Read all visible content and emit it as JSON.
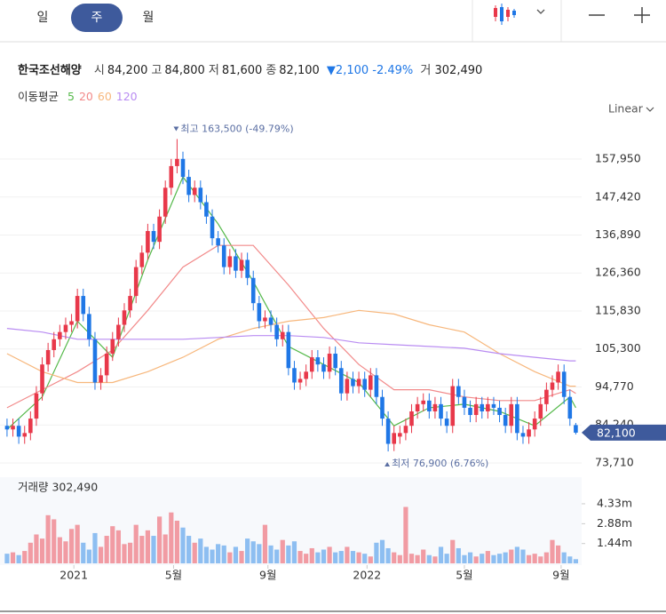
{
  "tabs": [
    "일",
    "주",
    "월"
  ],
  "header": {
    "name": "한국조선해양",
    "fields": [
      {
        "label": "시",
        "value": "84,200"
      },
      {
        "label": "고",
        "value": "84,800"
      },
      {
        "label": "저",
        "value": "81,600"
      },
      {
        "label": "종",
        "value": "82,100"
      }
    ],
    "change": "2,100 -2.49%",
    "volume_label": "거",
    "volume": "302,490"
  },
  "scale_mode": "Linear",
  "chart_data": {
    "type": "candlestick",
    "legend_title": "이동평균",
    "up_color": "#e8384a",
    "down_color": "#1f77e6",
    "volume_up_color": "#f19ba3",
    "volume_down_color": "#8dbef1",
    "xlim": [
      -1.2,
      98
    ],
    "xticks": [
      {
        "value": 11.4,
        "label": "2021"
      },
      {
        "value": 28.4,
        "label": "5월"
      },
      {
        "value": 44.5,
        "label": "9월"
      },
      {
        "value": 61.4,
        "label": "2022"
      },
      {
        "value": 78,
        "label": "5월"
      },
      {
        "value": 94.5,
        "label": "9월"
      }
    ],
    "ylim": [
      71490,
      168790
    ],
    "yticks": [
      {
        "value": 157950,
        "label": "157,950"
      },
      {
        "value": 147420,
        "label": "147,420"
      },
      {
        "value": 136890,
        "label": "136,890"
      },
      {
        "value": 126360,
        "label": "126,360"
      },
      {
        "value": 115830,
        "label": "115,830"
      },
      {
        "value": 105300,
        "label": "105,300"
      },
      {
        "value": 94770,
        "label": "94,770"
      },
      {
        "value": 84240,
        "label": "84,240"
      },
      {
        "value": 73710,
        "label": "73,710"
      }
    ],
    "grid": true,
    "high_label": "최고 163,500 (-49.79%)",
    "low_label": "최저 76,900 (6.76%)",
    "last_label": "82,100",
    "ohlc": [
      [
        84000,
        86000,
        81000,
        83000
      ],
      [
        83000,
        86000,
        81000,
        84000
      ],
      [
        84000,
        86000,
        79000,
        81000
      ],
      [
        81000,
        84000,
        79000,
        82000
      ],
      [
        82000,
        88000,
        80000,
        86000
      ],
      [
        86000,
        95000,
        84000,
        93000
      ],
      [
        93000,
        103000,
        91000,
        101000
      ],
      [
        101000,
        107000,
        99000,
        105000
      ],
      [
        105000,
        110000,
        103000,
        108000
      ],
      [
        108000,
        112000,
        106000,
        110000
      ],
      [
        110000,
        114000,
        108000,
        112000
      ],
      [
        112000,
        115000,
        110000,
        113000
      ],
      [
        113000,
        122000,
        111000,
        120000
      ],
      [
        120000,
        122000,
        113000,
        115000
      ],
      [
        115000,
        117000,
        106000,
        108000
      ],
      [
        108000,
        110000,
        94000,
        96000
      ],
      [
        96000,
        100000,
        94000,
        98000
      ],
      [
        98000,
        106000,
        96000,
        104000
      ],
      [
        104000,
        110000,
        102000,
        108000
      ],
      [
        108000,
        114000,
        106000,
        112000
      ],
      [
        112000,
        118000,
        110000,
        116000
      ],
      [
        116000,
        122000,
        114000,
        120000
      ],
      [
        120000,
        130000,
        118000,
        128000
      ],
      [
        128000,
        134000,
        126000,
        132000
      ],
      [
        132000,
        140000,
        130000,
        138000
      ],
      [
        138000,
        140000,
        133000,
        135000
      ],
      [
        135000,
        144000,
        133000,
        142000
      ],
      [
        142000,
        152000,
        140000,
        150000
      ],
      [
        150000,
        158000,
        148000,
        156000
      ],
      [
        156000,
        163500,
        154000,
        158000
      ],
      [
        158000,
        160000,
        151000,
        153000
      ],
      [
        153000,
        155000,
        146000,
        148000
      ],
      [
        148000,
        152000,
        146000,
        150000
      ],
      [
        150000,
        152000,
        144000,
        146000
      ],
      [
        146000,
        148000,
        140000,
        142000
      ],
      [
        142000,
        144000,
        134000,
        136000
      ],
      [
        136000,
        138000,
        132000,
        134000
      ],
      [
        134000,
        136000,
        126000,
        128000
      ],
      [
        128000,
        133000,
        126000,
        131000
      ],
      [
        131000,
        133000,
        125000,
        127000
      ],
      [
        127000,
        132000,
        125000,
        130000
      ],
      [
        130000,
        132000,
        123000,
        125000
      ],
      [
        125000,
        127000,
        116000,
        118000
      ],
      [
        118000,
        120000,
        111000,
        113000
      ],
      [
        113000,
        116000,
        111000,
        114000
      ],
      [
        114000,
        116000,
        110000,
        112000
      ],
      [
        112000,
        114000,
        106000,
        108000
      ],
      [
        108000,
        112000,
        106000,
        110000
      ],
      [
        110000,
        112000,
        98000,
        100000
      ],
      [
        100000,
        102000,
        94000,
        96000
      ],
      [
        96000,
        99000,
        94000,
        97000
      ],
      [
        97000,
        101000,
        95000,
        99000
      ],
      [
        99000,
        105000,
        97000,
        103000
      ],
      [
        103000,
        105000,
        99000,
        101000
      ],
      [
        101000,
        103000,
        97000,
        99000
      ],
      [
        99000,
        106000,
        97000,
        104000
      ],
      [
        104000,
        106000,
        98000,
        100000
      ],
      [
        100000,
        102000,
        91000,
        93000
      ],
      [
        93000,
        99000,
        91000,
        97000
      ],
      [
        97000,
        99000,
        93000,
        95000
      ],
      [
        95000,
        99000,
        93000,
        97000
      ],
      [
        97000,
        99000,
        92000,
        94000
      ],
      [
        94000,
        100000,
        92000,
        98000
      ],
      [
        98000,
        100000,
        90000,
        92000
      ],
      [
        92000,
        94000,
        84000,
        86000
      ],
      [
        86000,
        88000,
        76900,
        79000
      ],
      [
        79000,
        84000,
        77000,
        82000
      ],
      [
        81000,
        84000,
        79000,
        82000
      ],
      [
        82000,
        86000,
        80000,
        84000
      ],
      [
        84000,
        90000,
        82000,
        88000
      ],
      [
        88000,
        92000,
        86000,
        90000
      ],
      [
        90000,
        93000,
        88000,
        91000
      ],
      [
        91000,
        93000,
        86000,
        88000
      ],
      [
        88000,
        92000,
        86000,
        90000
      ],
      [
        90000,
        92000,
        84000,
        86000
      ],
      [
        86000,
        88000,
        82000,
        84000
      ],
      [
        84000,
        97000,
        82000,
        95000
      ],
      [
        95000,
        97000,
        90000,
        92000
      ],
      [
        92000,
        94000,
        87000,
        89000
      ],
      [
        89000,
        91000,
        85000,
        87000
      ],
      [
        87000,
        92000,
        85000,
        90000
      ],
      [
        90000,
        92000,
        86000,
        88000
      ],
      [
        88000,
        92000,
        86000,
        90000
      ],
      [
        90000,
        92000,
        87000,
        89000
      ],
      [
        89000,
        91000,
        85000,
        87000
      ],
      [
        87000,
        89000,
        82000,
        84000
      ],
      [
        84000,
        92000,
        82000,
        90000
      ],
      [
        90000,
        92000,
        80000,
        82000
      ],
      [
        82000,
        84000,
        79000,
        81000
      ],
      [
        81000,
        85000,
        79000,
        83000
      ],
      [
        83000,
        88000,
        81000,
        86000
      ],
      [
        86000,
        92000,
        84000,
        90000
      ],
      [
        90000,
        96000,
        88000,
        94000
      ],
      [
        94000,
        98000,
        92000,
        96000
      ],
      [
        96000,
        101000,
        94000,
        99000
      ],
      [
        99000,
        101000,
        90000,
        92000
      ],
      [
        92000,
        94000,
        84000,
        86000
      ],
      [
        84200,
        84800,
        81600,
        82100
      ]
    ],
    "series": [
      {
        "name": "5",
        "color": "#55b94a",
        "x": [
          0,
          6,
          12,
          18,
          24,
          30,
          36,
          42,
          48,
          54,
          60,
          66,
          72,
          78,
          84,
          90,
          96,
          97
        ],
        "values": [
          83000,
          92000,
          113000,
          103000,
          130000,
          153000,
          140000,
          124000,
          106000,
          101000,
          96000,
          84000,
          89000,
          90000,
          88000,
          84000,
          92000,
          89000
        ]
      },
      {
        "name": "20",
        "color": "#f28a8a",
        "x": [
          0,
          6,
          12,
          18,
          24,
          30,
          36,
          42,
          48,
          54,
          60,
          66,
          72,
          78,
          84,
          90,
          96,
          97
        ],
        "values": [
          89000,
          94000,
          99000,
          105000,
          116000,
          128000,
          134000,
          134000,
          123000,
          111000,
          101000,
          94000,
          94000,
          92000,
          91000,
          91000,
          94000,
          93000
        ]
      },
      {
        "name": "60",
        "color": "#f7b77c",
        "x": [
          0,
          6,
          12,
          18,
          24,
          30,
          36,
          42,
          48,
          54,
          60,
          66,
          72,
          78,
          84,
          90,
          96,
          97
        ],
        "values": [
          104000,
          99000,
          96000,
          96000,
          99000,
          103000,
          108000,
          111000,
          113000,
          114000,
          116000,
          115000,
          112000,
          110000,
          104000,
          99000,
          95000,
          95000
        ]
      },
      {
        "name": "120",
        "color": "#b98cf2",
        "x": [
          0,
          6,
          12,
          18,
          24,
          30,
          36,
          42,
          48,
          54,
          60,
          66,
          72,
          78,
          84,
          90,
          96,
          97
        ],
        "values": [
          111000,
          110000,
          108000,
          108000,
          108000,
          108000,
          108500,
          109000,
          109000,
          108500,
          107000,
          106500,
          106000,
          105500,
          104000,
          103000,
          102000,
          102000
        ]
      }
    ],
    "volume_title": "거래량 302,490",
    "volume_ylim": [
      0,
      6070000
    ],
    "volume_yticks": [
      {
        "value": 4330000,
        "label": "4.33m"
      },
      {
        "value": 2880000,
        "label": "2.88m"
      },
      {
        "value": 1440000,
        "label": "1.44m"
      }
    ],
    "volume": [
      700000,
      800000,
      600000,
      900000,
      1500000,
      2100000,
      1800000,
      3500000,
      3200000,
      1900000,
      1600000,
      2500000,
      2800000,
      1500000,
      1000000,
      2200000,
      1200000,
      2000000,
      2700000,
      2400000,
      1400000,
      1500000,
      2800000,
      2000000,
      2400000,
      2000000,
      3400000,
      2100000,
      3700000,
      3100000,
      2600000,
      2000000,
      1500000,
      1800000,
      1200000,
      1000000,
      1400000,
      1300000,
      800000,
      1200000,
      900000,
      1800000,
      1600000,
      1400000,
      2800000,
      1300000,
      1000000,
      1700000,
      1300000,
      1600000,
      900000,
      700000,
      1100000,
      800000,
      1000000,
      1200000,
      800000,
      900000,
      1200000,
      900000,
      800000,
      700000,
      500000,
      1500000,
      1700000,
      1100000,
      800000,
      600000,
      4100000,
      700000,
      600000,
      1000000,
      600000,
      500000,
      1200000,
      700000,
      1700000,
      1100000,
      600000,
      800000,
      500000,
      700000,
      900000,
      600000,
      700000,
      800000,
      1000000,
      1200000,
      1000000,
      600000,
      700000,
      500000,
      800000,
      1700000,
      1300000,
      800000,
      500000,
      302490
    ]
  }
}
